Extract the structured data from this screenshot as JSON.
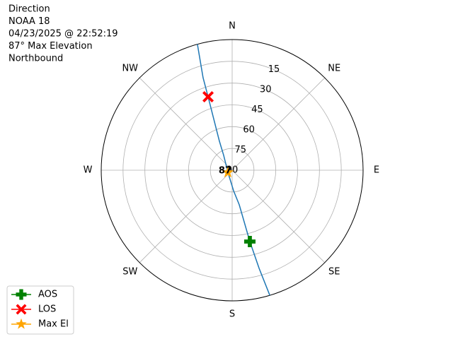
{
  "chart_data": {
    "type": "polar",
    "title": [
      "Direction",
      "NOAA 18",
      "04/23/2025 @ 22:52:19",
      "87° Max Elevation",
      "Northbound"
    ],
    "rlim": [
      90,
      0
    ],
    "rticks": [
      15,
      30,
      45,
      60,
      75,
      90
    ],
    "thetaticks": [
      {
        "value": 0,
        "label": "N"
      },
      {
        "value": 45,
        "label": "NE"
      },
      {
        "value": 90,
        "label": "E"
      },
      {
        "value": 135,
        "label": "SE"
      },
      {
        "value": 180,
        "label": "S"
      },
      {
        "value": 225,
        "label": "SW"
      },
      {
        "value": 270,
        "label": "W"
      },
      {
        "value": 315,
        "label": "NW"
      }
    ],
    "grid": true,
    "track": {
      "color": "#1f77b4",
      "theta": [
        163.3,
        164.7,
        166.1,
        168.5,
        176,
        243,
        330.3,
        336.3,
        341.9,
        342.6,
        344.6
      ],
      "values": [
        0,
        20,
        39.4,
        65.7,
        75.8,
        86.7,
        78.2,
        68.2,
        36.8,
        23.2,
        0
      ]
    },
    "series": [
      {
        "name": "AOS",
        "color": "green",
        "marker": "plus",
        "theta": [
          166.1
        ],
        "values": [
          39.4
        ]
      },
      {
        "name": "LOS",
        "color": "red",
        "marker": "x",
        "theta": [
          341.9
        ],
        "values": [
          36.8
        ]
      },
      {
        "name": "Max El",
        "color": "orange",
        "marker": "star",
        "theta": [
          243
        ],
        "values": [
          86.7
        ],
        "value_labels": [
          "87"
        ]
      }
    ],
    "legend": "lower left"
  }
}
